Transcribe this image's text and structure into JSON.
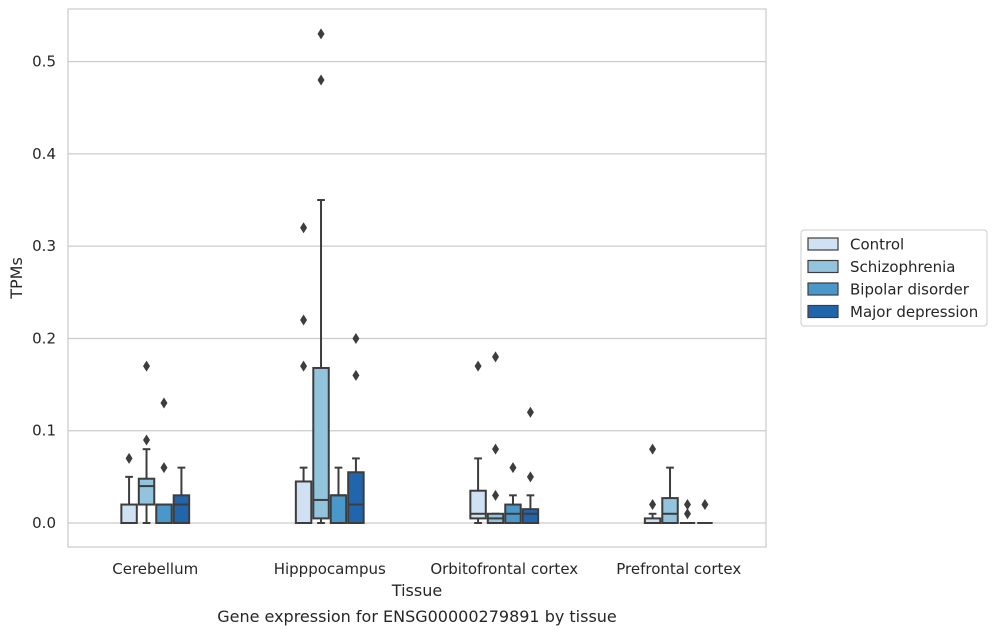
{
  "chart_data": {
    "type": "box",
    "title": "Gene expression for ENSG00000279891 by tissue",
    "xlabel": "Tissue",
    "ylabel": "TPMs",
    "ylim": [
      -0.026,
      0.557
    ],
    "yticks": [
      0.0,
      0.1,
      0.2,
      0.3,
      0.4,
      0.5
    ],
    "ytick_labels": [
      "0.0",
      "0.1",
      "0.2",
      "0.3",
      "0.4",
      "0.5"
    ],
    "grid": true,
    "legend_position": "right",
    "categories": [
      "Cerebellum",
      "Hipppocampus",
      "Orbitofrontal cortex",
      "Prefrontal cortex"
    ],
    "series": [
      {
        "name": "Control",
        "color": "#cfe1f2",
        "boxes": [
          {
            "whislo": 0.0,
            "q1": 0.0,
            "med": 0.0,
            "q3": 0.02,
            "whishi": 0.05,
            "fliers": [
              0.07
            ]
          },
          {
            "whislo": 0.0,
            "q1": 0.0,
            "med": 0.0,
            "q3": 0.045,
            "whishi": 0.06,
            "fliers": [
              0.17,
              0.22,
              0.32
            ]
          },
          {
            "whislo": 0.0,
            "q1": 0.005,
            "med": 0.01,
            "q3": 0.035,
            "whishi": 0.07,
            "fliers": [
              0.17
            ]
          },
          {
            "whislo": 0.0,
            "q1": 0.0,
            "med": 0.0,
            "q3": 0.005,
            "whishi": 0.01,
            "fliers": [
              0.02,
              0.08
            ]
          }
        ]
      },
      {
        "name": "Schizophrenia",
        "color": "#93c4de",
        "boxes": [
          {
            "whislo": 0.0,
            "q1": 0.02,
            "med": 0.04,
            "q3": 0.048,
            "whishi": 0.08,
            "fliers": [
              0.09,
              0.17
            ]
          },
          {
            "whislo": 0.0,
            "q1": 0.005,
            "med": 0.025,
            "q3": 0.168,
            "whishi": 0.35,
            "fliers": [
              0.48,
              0.53
            ]
          },
          {
            "whislo": 0.0,
            "q1": 0.0,
            "med": 0.005,
            "q3": 0.01,
            "whishi": 0.01,
            "fliers": [
              0.03,
              0.08,
              0.18
            ]
          },
          {
            "whislo": 0.0,
            "q1": 0.0,
            "med": 0.01,
            "q3": 0.027,
            "whishi": 0.06,
            "fliers": []
          }
        ]
      },
      {
        "name": "Bipolar disorder",
        "color": "#4a98c9",
        "boxes": [
          {
            "whislo": 0.0,
            "q1": 0.0,
            "med": 0.02,
            "q3": 0.02,
            "whishi": 0.02,
            "fliers": [
              0.06,
              0.13
            ]
          },
          {
            "whislo": 0.0,
            "q1": 0.0,
            "med": 0.03,
            "q3": 0.03,
            "whishi": 0.06,
            "fliers": []
          },
          {
            "whislo": 0.0,
            "q1": 0.0,
            "med": 0.01,
            "q3": 0.02,
            "whishi": 0.03,
            "fliers": [
              0.06
            ]
          },
          {
            "whislo": 0.0,
            "q1": 0.0,
            "med": 0.0,
            "q3": 0.0,
            "whishi": 0.0,
            "fliers": [
              0.01,
              0.02
            ]
          }
        ]
      },
      {
        "name": "Major depression",
        "color": "#2166ac",
        "boxes": [
          {
            "whislo": 0.0,
            "q1": 0.0,
            "med": 0.02,
            "q3": 0.03,
            "whishi": 0.06,
            "fliers": []
          },
          {
            "whislo": 0.0,
            "q1": 0.0,
            "med": 0.02,
            "q3": 0.055,
            "whishi": 0.07,
            "fliers": [
              0.16,
              0.2
            ]
          },
          {
            "whislo": 0.0,
            "q1": 0.0,
            "med": 0.01,
            "q3": 0.015,
            "whishi": 0.03,
            "fliers": [
              0.05,
              0.12
            ]
          },
          {
            "whislo": 0.0,
            "q1": 0.0,
            "med": 0.0,
            "q3": 0.0,
            "whishi": 0.0,
            "fliers": [
              0.02
            ]
          }
        ]
      }
    ]
  }
}
